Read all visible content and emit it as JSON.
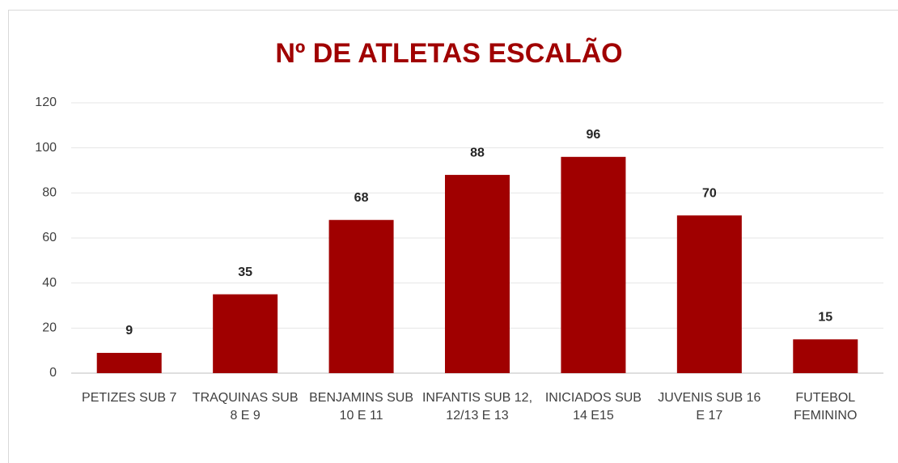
{
  "chart_data": {
    "type": "bar",
    "title": "Nº DE ATLETAS ESCALÃO",
    "categories": [
      "PETIZES SUB 7",
      "TRAQUINAS SUB 8 E 9",
      "BENJAMINS SUB 10 E 11",
      "INFANTIS SUB 12, 12/13 E 13",
      "INICIADOS SUB 14 E15",
      "JUVENIS SUB 16 E 17",
      "FUTEBOL FEMININO"
    ],
    "values": [
      9,
      35,
      68,
      88,
      96,
      70,
      15
    ],
    "color": "#a00000",
    "ylim": [
      0,
      120
    ],
    "yticks": [
      0,
      20,
      40,
      60,
      80,
      100,
      120
    ],
    "grid": true
  }
}
